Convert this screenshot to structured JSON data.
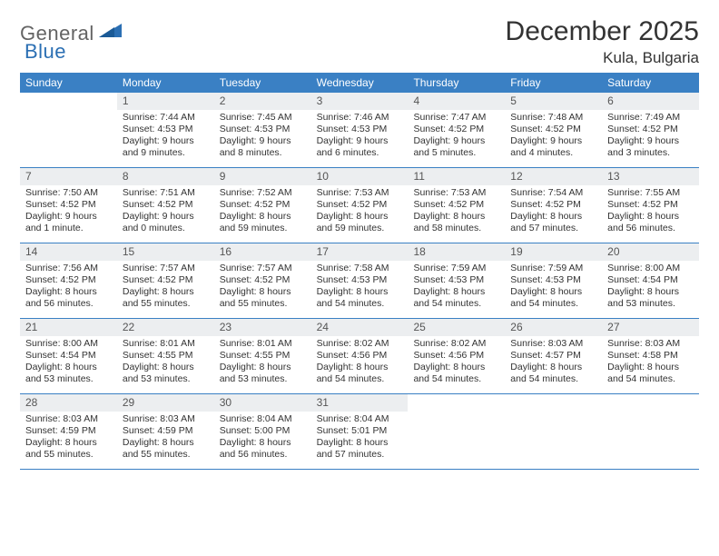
{
  "logo": {
    "text1": "General",
    "text2": "Blue",
    "color1": "#646464",
    "color2": "#2b6fb3"
  },
  "title": "December 2025",
  "location": "Kula, Bulgaria",
  "colors": {
    "header_bar": "#3a80c4",
    "daynum_bg": "#eceef0",
    "rule": "#3a80c4",
    "text": "#333333"
  },
  "daysOfWeek": [
    "Sunday",
    "Monday",
    "Tuesday",
    "Wednesday",
    "Thursday",
    "Friday",
    "Saturday"
  ],
  "weeks": [
    [
      {
        "n": "",
        "sunrise": "",
        "sunset": "",
        "daylight": ""
      },
      {
        "n": "1",
        "sunrise": "Sunrise: 7:44 AM",
        "sunset": "Sunset: 4:53 PM",
        "daylight": "Daylight: 9 hours and 9 minutes."
      },
      {
        "n": "2",
        "sunrise": "Sunrise: 7:45 AM",
        "sunset": "Sunset: 4:53 PM",
        "daylight": "Daylight: 9 hours and 8 minutes."
      },
      {
        "n": "3",
        "sunrise": "Sunrise: 7:46 AM",
        "sunset": "Sunset: 4:53 PM",
        "daylight": "Daylight: 9 hours and 6 minutes."
      },
      {
        "n": "4",
        "sunrise": "Sunrise: 7:47 AM",
        "sunset": "Sunset: 4:52 PM",
        "daylight": "Daylight: 9 hours and 5 minutes."
      },
      {
        "n": "5",
        "sunrise": "Sunrise: 7:48 AM",
        "sunset": "Sunset: 4:52 PM",
        "daylight": "Daylight: 9 hours and 4 minutes."
      },
      {
        "n": "6",
        "sunrise": "Sunrise: 7:49 AM",
        "sunset": "Sunset: 4:52 PM",
        "daylight": "Daylight: 9 hours and 3 minutes."
      }
    ],
    [
      {
        "n": "7",
        "sunrise": "Sunrise: 7:50 AM",
        "sunset": "Sunset: 4:52 PM",
        "daylight": "Daylight: 9 hours and 1 minute."
      },
      {
        "n": "8",
        "sunrise": "Sunrise: 7:51 AM",
        "sunset": "Sunset: 4:52 PM",
        "daylight": "Daylight: 9 hours and 0 minutes."
      },
      {
        "n": "9",
        "sunrise": "Sunrise: 7:52 AM",
        "sunset": "Sunset: 4:52 PM",
        "daylight": "Daylight: 8 hours and 59 minutes."
      },
      {
        "n": "10",
        "sunrise": "Sunrise: 7:53 AM",
        "sunset": "Sunset: 4:52 PM",
        "daylight": "Daylight: 8 hours and 59 minutes."
      },
      {
        "n": "11",
        "sunrise": "Sunrise: 7:53 AM",
        "sunset": "Sunset: 4:52 PM",
        "daylight": "Daylight: 8 hours and 58 minutes."
      },
      {
        "n": "12",
        "sunrise": "Sunrise: 7:54 AM",
        "sunset": "Sunset: 4:52 PM",
        "daylight": "Daylight: 8 hours and 57 minutes."
      },
      {
        "n": "13",
        "sunrise": "Sunrise: 7:55 AM",
        "sunset": "Sunset: 4:52 PM",
        "daylight": "Daylight: 8 hours and 56 minutes."
      }
    ],
    [
      {
        "n": "14",
        "sunrise": "Sunrise: 7:56 AM",
        "sunset": "Sunset: 4:52 PM",
        "daylight": "Daylight: 8 hours and 56 minutes."
      },
      {
        "n": "15",
        "sunrise": "Sunrise: 7:57 AM",
        "sunset": "Sunset: 4:52 PM",
        "daylight": "Daylight: 8 hours and 55 minutes."
      },
      {
        "n": "16",
        "sunrise": "Sunrise: 7:57 AM",
        "sunset": "Sunset: 4:52 PM",
        "daylight": "Daylight: 8 hours and 55 minutes."
      },
      {
        "n": "17",
        "sunrise": "Sunrise: 7:58 AM",
        "sunset": "Sunset: 4:53 PM",
        "daylight": "Daylight: 8 hours and 54 minutes."
      },
      {
        "n": "18",
        "sunrise": "Sunrise: 7:59 AM",
        "sunset": "Sunset: 4:53 PM",
        "daylight": "Daylight: 8 hours and 54 minutes."
      },
      {
        "n": "19",
        "sunrise": "Sunrise: 7:59 AM",
        "sunset": "Sunset: 4:53 PM",
        "daylight": "Daylight: 8 hours and 54 minutes."
      },
      {
        "n": "20",
        "sunrise": "Sunrise: 8:00 AM",
        "sunset": "Sunset: 4:54 PM",
        "daylight": "Daylight: 8 hours and 53 minutes."
      }
    ],
    [
      {
        "n": "21",
        "sunrise": "Sunrise: 8:00 AM",
        "sunset": "Sunset: 4:54 PM",
        "daylight": "Daylight: 8 hours and 53 minutes."
      },
      {
        "n": "22",
        "sunrise": "Sunrise: 8:01 AM",
        "sunset": "Sunset: 4:55 PM",
        "daylight": "Daylight: 8 hours and 53 minutes."
      },
      {
        "n": "23",
        "sunrise": "Sunrise: 8:01 AM",
        "sunset": "Sunset: 4:55 PM",
        "daylight": "Daylight: 8 hours and 53 minutes."
      },
      {
        "n": "24",
        "sunrise": "Sunrise: 8:02 AM",
        "sunset": "Sunset: 4:56 PM",
        "daylight": "Daylight: 8 hours and 54 minutes."
      },
      {
        "n": "25",
        "sunrise": "Sunrise: 8:02 AM",
        "sunset": "Sunset: 4:56 PM",
        "daylight": "Daylight: 8 hours and 54 minutes."
      },
      {
        "n": "26",
        "sunrise": "Sunrise: 8:03 AM",
        "sunset": "Sunset: 4:57 PM",
        "daylight": "Daylight: 8 hours and 54 minutes."
      },
      {
        "n": "27",
        "sunrise": "Sunrise: 8:03 AM",
        "sunset": "Sunset: 4:58 PM",
        "daylight": "Daylight: 8 hours and 54 minutes."
      }
    ],
    [
      {
        "n": "28",
        "sunrise": "Sunrise: 8:03 AM",
        "sunset": "Sunset: 4:59 PM",
        "daylight": "Daylight: 8 hours and 55 minutes."
      },
      {
        "n": "29",
        "sunrise": "Sunrise: 8:03 AM",
        "sunset": "Sunset: 4:59 PM",
        "daylight": "Daylight: 8 hours and 55 minutes."
      },
      {
        "n": "30",
        "sunrise": "Sunrise: 8:04 AM",
        "sunset": "Sunset: 5:00 PM",
        "daylight": "Daylight: 8 hours and 56 minutes."
      },
      {
        "n": "31",
        "sunrise": "Sunrise: 8:04 AM",
        "sunset": "Sunset: 5:01 PM",
        "daylight": "Daylight: 8 hours and 57 minutes."
      },
      {
        "n": "",
        "sunrise": "",
        "sunset": "",
        "daylight": ""
      },
      {
        "n": "",
        "sunrise": "",
        "sunset": "",
        "daylight": ""
      },
      {
        "n": "",
        "sunrise": "",
        "sunset": "",
        "daylight": ""
      }
    ]
  ]
}
